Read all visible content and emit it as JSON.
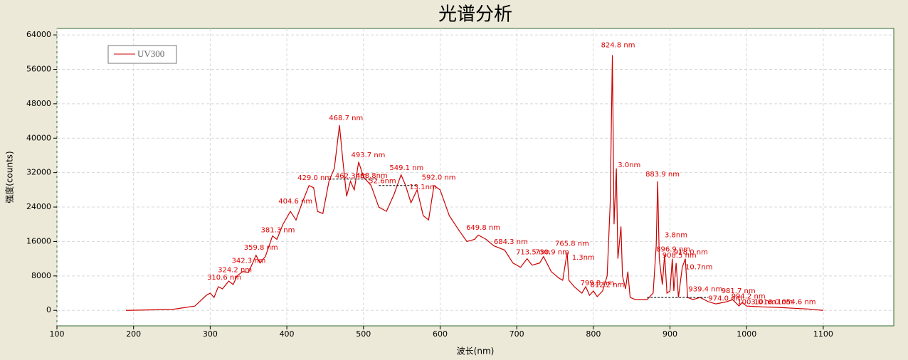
{
  "chart_data": {
    "type": "line",
    "title": "光谱分析",
    "xlabel": "波长(nm)",
    "ylabel": "强度(counts)",
    "xlim": [
      100,
      1192
    ],
    "ylim": [
      -3600,
      65500
    ],
    "xticks": [
      100,
      200,
      300,
      400,
      500,
      600,
      700,
      800,
      900,
      1000,
      1100
    ],
    "yticks": [
      0,
      8000,
      16000,
      24000,
      32000,
      40000,
      48000,
      56000,
      64000
    ],
    "grid": true,
    "legend": "upper left",
    "series": [
      {
        "name": "UV300",
        "color": "#cc0000",
        "x": [
          190,
          250,
          280,
          295,
          300,
          305,
          310.6,
          316,
          324.2,
          330,
          335,
          342.3,
          350,
          359.8,
          365,
          372,
          381.3,
          387,
          395,
          404.6,
          412,
          420,
          429,
          435,
          440,
          447,
          455,
          462,
          468.7,
          473,
          478,
          483,
          488,
          493.7,
          500,
          510,
          520,
          530,
          540,
          549.1,
          555,
          562,
          570,
          578,
          585,
          592,
          600,
          612,
          625,
          635,
          645,
          649.8,
          660,
          670,
          684.3,
          695,
          705,
          713.5,
          720,
          730,
          735,
          745,
          755,
          760,
          765.8,
          768,
          775,
          785,
          790,
          795,
          800,
          805,
          812,
          818,
          822,
          824.8,
          827,
          830,
          832,
          836,
          838,
          842,
          845,
          848,
          855,
          870,
          878,
          882,
          883.9,
          886,
          890,
          893,
          896,
          900,
          903,
          905,
          908,
          911,
          916,
          920,
          923,
          930,
          939.4,
          950,
          960,
          974,
          981.7,
          990,
          994,
          1000,
          1010,
          1020,
          1040,
          1050,
          1060,
          1080,
          1100
        ],
        "values": [
          0,
          200,
          1000,
          3500,
          4000,
          3000,
          5500,
          5000,
          6800,
          6000,
          8000,
          9000,
          8800,
          12800,
          11000,
          12500,
          17300,
          16500,
          20000,
          23000,
          21000,
          25000,
          29000,
          28500,
          23000,
          22500,
          30000,
          33000,
          43000,
          35000,
          26500,
          30000,
          28000,
          34500,
          31000,
          29000,
          24000,
          23000,
          27000,
          31500,
          29000,
          25000,
          28000,
          22000,
          21000,
          29000,
          28000,
          22000,
          18500,
          16000,
          16500,
          17500,
          16500,
          15000,
          14000,
          11000,
          10000,
          12000,
          10500,
          11000,
          12500,
          9000,
          7500,
          7000,
          13500,
          7000,
          5500,
          4000,
          5500,
          3500,
          4500,
          3200,
          4500,
          8000,
          25000,
          59300,
          20000,
          33000,
          12000,
          19500,
          8000,
          5000,
          9000,
          3000,
          2500,
          2500,
          4000,
          15000,
          30000,
          12000,
          6000,
          13000,
          4000,
          4500,
          12000,
          4500,
          11000,
          3000,
          10000,
          12000,
          3000,
          2500,
          3000,
          2000,
          1500,
          2000,
          2500,
          1000,
          1800,
          1000,
          900,
          800,
          700,
          600,
          500,
          300,
          0
        ]
      }
    ],
    "dashed_lines": [
      {
        "x": [
          455,
          520
        ],
        "y": 30500
      },
      {
        "x": [
          520,
          570
        ],
        "y": 29000
      },
      {
        "x": [
          870,
          950
        ],
        "y": 3000
      }
    ],
    "annotations": [
      {
        "text": "310.6 nm",
        "x": 296,
        "y": 7600
      },
      {
        "text": "324.2 nm",
        "x": 310,
        "y": 9400
      },
      {
        "text": "342.3 nm",
        "x": 328,
        "y": 11500
      },
      {
        "text": "359.8 nm",
        "x": 344,
        "y": 14600
      },
      {
        "text": "381.3 nm",
        "x": 366,
        "y": 18600
      },
      {
        "text": "404.6 nm",
        "x": 389,
        "y": 25300
      },
      {
        "text": "429.0 nm",
        "x": 414,
        "y": 30800
      },
      {
        "text": "462.3nm",
        "x": 463,
        "y": 31200
      },
      {
        "text": "488.8nm",
        "x": 490,
        "y": 31300
      },
      {
        "text": "468.7 nm",
        "x": 455,
        "y": 44700
      },
      {
        "text": "493.7 nm",
        "x": 484,
        "y": 36100
      },
      {
        "text": "52.6nm",
        "x": 507,
        "y": 30000
      },
      {
        "text": "549.1 nm",
        "x": 534,
        "y": 33100
      },
      {
        "text": "13.1nm",
        "x": 560,
        "y": 28600
      },
      {
        "text": "592.0 nm",
        "x": 576,
        "y": 30900
      },
      {
        "text": "649.8 nm",
        "x": 634,
        "y": 19200
      },
      {
        "text": "684.3 nm",
        "x": 670,
        "y": 15900
      },
      {
        "text": "713.5 nm",
        "x": 699,
        "y": 13500
      },
      {
        "text": "730.9 nm",
        "x": 724,
        "y": 13500
      },
      {
        "text": "765.8 nm",
        "x": 750,
        "y": 15500
      },
      {
        "text": "1.3nm",
        "x": 772,
        "y": 12300
      },
      {
        "text": "799.8 nm",
        "x": 783,
        "y": 6300
      },
      {
        "text": "812.2 nm",
        "x": 796,
        "y": 5900
      },
      {
        "text": "824.8 nm",
        "x": 810,
        "y": 61600
      },
      {
        "text": "3.0nm",
        "x": 832,
        "y": 33800
      },
      {
        "text": "883.9 nm",
        "x": 868,
        "y": 31600
      },
      {
        "text": "3.8nm",
        "x": 893,
        "y": 17500
      },
      {
        "text": "896.9 nm",
        "x": 882,
        "y": 14200
      },
      {
        "text": "908.5 nm",
        "x": 890,
        "y": 12800
      },
      {
        "text": "918.0 nm",
        "x": 905,
        "y": 13500
      },
      {
        "text": "10.7nm",
        "x": 920,
        "y": 10000
      },
      {
        "text": "939.4 nm",
        "x": 924,
        "y": 4900
      },
      {
        "text": "974.0 nm",
        "x": 950,
        "y": 2800
      },
      {
        "text": "981.7 nm",
        "x": 967,
        "y": 4500
      },
      {
        "text": "994.2 nm",
        "x": 980,
        "y": 3300
      },
      {
        "text": "1003.0 nm",
        "x": 988,
        "y": 1900
      },
      {
        "text": "1016.0 nm",
        "x": 1010,
        "y": 1900
      },
      {
        "text": "1054.6 nm",
        "x": 1040,
        "y": 1900
      }
    ]
  }
}
